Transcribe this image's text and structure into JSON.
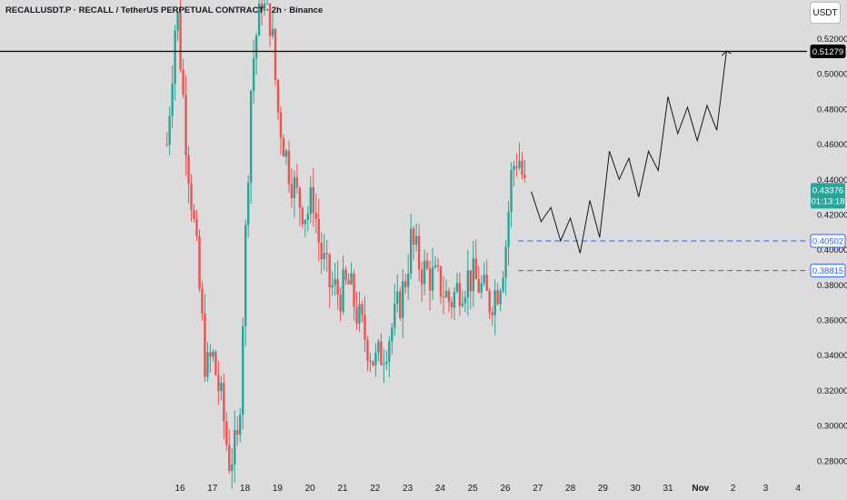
{
  "header": {
    "title": "RECALLUSDT.P · RECALL / TetherUS PERPETUAL CONTRACT · 2h · Binance",
    "currency_button": "USDT"
  },
  "colors": {
    "background": "#dcdcdc",
    "up": "#26a69a",
    "down": "#ef5350",
    "level_line": "#2962ff",
    "resistance_line": "#000000",
    "projection_line": "#131722",
    "current_price_tag": "#26a69a"
  },
  "chart_data": {
    "type": "candlestick",
    "timeframe": "2h",
    "x_axis": {
      "labels": [
        "16",
        "17",
        "18",
        "19",
        "20",
        "21",
        "22",
        "23",
        "24",
        "25",
        "26",
        "27",
        "28",
        "29",
        "30",
        "31",
        "Nov",
        "2",
        "3",
        "4"
      ],
      "highlight_label": "Nov"
    },
    "y_axis": {
      "range": [
        0.268,
        0.542
      ],
      "ticks": [
        "0.28000",
        "0.30000",
        "0.32000",
        "0.34000",
        "0.36000",
        "0.38000",
        "0.40000",
        "0.42000",
        "0.44000",
        "0.46000",
        "0.48000",
        "0.50000",
        "0.52000"
      ]
    },
    "ohlc_close_path": [
      [
        15.6,
        0.46
      ],
      [
        15.9,
        0.54
      ],
      [
        16.2,
        0.46
      ],
      [
        16.5,
        0.4
      ],
      [
        16.8,
        0.33
      ],
      [
        17.0,
        0.34
      ],
      [
        17.3,
        0.31
      ],
      [
        17.5,
        0.28
      ],
      [
        17.8,
        0.29
      ],
      [
        18.0,
        0.4
      ],
      [
        18.2,
        0.5
      ],
      [
        18.5,
        0.545
      ],
      [
        18.8,
        0.53
      ],
      [
        19.0,
        0.48
      ],
      [
        19.3,
        0.45
      ],
      [
        19.6,
        0.43
      ],
      [
        19.9,
        0.42
      ],
      [
        20.1,
        0.43
      ],
      [
        20.3,
        0.4
      ],
      [
        20.6,
        0.38
      ],
      [
        20.9,
        0.375
      ],
      [
        21.2,
        0.38
      ],
      [
        21.5,
        0.36
      ],
      [
        21.8,
        0.345
      ],
      [
        22.0,
        0.335
      ],
      [
        22.3,
        0.345
      ],
      [
        22.6,
        0.36
      ],
      [
        22.9,
        0.38
      ],
      [
        23.1,
        0.405
      ],
      [
        23.4,
        0.39
      ],
      [
        23.7,
        0.385
      ],
      [
        24.0,
        0.38
      ],
      [
        24.3,
        0.37
      ],
      [
        24.6,
        0.38
      ],
      [
        24.9,
        0.385
      ],
      [
        25.2,
        0.38
      ],
      [
        25.5,
        0.37
      ],
      [
        25.8,
        0.38
      ],
      [
        26.0,
        0.4
      ],
      [
        26.2,
        0.445
      ],
      [
        26.4,
        0.455
      ],
      [
        26.6,
        0.434
      ]
    ],
    "current_price": {
      "value": 0.43376,
      "label": "0.43376",
      "countdown": "01:13:18"
    },
    "horizontal_lines": [
      {
        "label": "0.51279",
        "value": 0.51279,
        "style": "solid",
        "color": "#000000"
      },
      {
        "label": "0.40502",
        "value": 0.40502,
        "style": "dashed",
        "color": "#2962ff"
      },
      {
        "label": "0.38815",
        "value": 0.38815,
        "style": "dashed",
        "color": "#2962ff"
      }
    ],
    "projection_path": [
      [
        26.8,
        0.433
      ],
      [
        27.1,
        0.416
      ],
      [
        27.4,
        0.424
      ],
      [
        27.7,
        0.405
      ],
      [
        28.0,
        0.418
      ],
      [
        28.3,
        0.398
      ],
      [
        28.6,
        0.428
      ],
      [
        28.9,
        0.407
      ],
      [
        29.2,
        0.456
      ],
      [
        29.5,
        0.44
      ],
      [
        29.8,
        0.452
      ],
      [
        30.1,
        0.43
      ],
      [
        30.4,
        0.456
      ],
      [
        30.7,
        0.445
      ],
      [
        31.0,
        0.487
      ],
      [
        31.3,
        0.466
      ],
      [
        31.6,
        0.481
      ],
      [
        31.9,
        0.462
      ],
      [
        32.2,
        0.482
      ],
      [
        32.5,
        0.468
      ],
      [
        32.8,
        0.513
      ]
    ]
  }
}
